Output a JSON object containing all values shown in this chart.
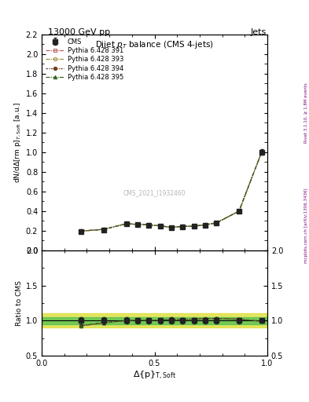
{
  "title_top": "13000 GeV pp",
  "title_right": "Jets",
  "plot_title": "Dijet $p_T$ balance (CMS 4-jets)",
  "watermark": "CMS_2021_I1932460",
  "right_label_top": "Rivet 3.1.10, ≥ 1.8M events",
  "right_label_bot": "mcplots.cern.ch [arXiv:1306.3436]",
  "ylabel_main": "dN/dΔ(rm p)$_{T,{\\rm Soft}}$ [a.u.]",
  "ylabel_ratio": "Ratio to CMS",
  "xlabel": "Δ{rm p}$_{T,Soft}$",
  "x_data": [
    0.175,
    0.275,
    0.375,
    0.425,
    0.475,
    0.525,
    0.575,
    0.625,
    0.675,
    0.725,
    0.775,
    0.875,
    0.975
  ],
  "cms_y": [
    0.19,
    0.21,
    0.27,
    0.262,
    0.258,
    0.248,
    0.232,
    0.242,
    0.244,
    0.258,
    0.278,
    0.398,
    1.0
  ],
  "cms_yerr": [
    0.01,
    0.01,
    0.012,
    0.01,
    0.01,
    0.01,
    0.01,
    0.01,
    0.01,
    0.01,
    0.012,
    0.015,
    0.03
  ],
  "p391_y": [
    0.196,
    0.213,
    0.27,
    0.263,
    0.259,
    0.249,
    0.233,
    0.243,
    0.245,
    0.259,
    0.279,
    0.399,
    1.001
  ],
  "p393_y": [
    0.196,
    0.214,
    0.271,
    0.263,
    0.259,
    0.249,
    0.233,
    0.243,
    0.245,
    0.259,
    0.279,
    0.399,
    1.001
  ],
  "p394_y": [
    0.196,
    0.214,
    0.271,
    0.264,
    0.26,
    0.249,
    0.234,
    0.244,
    0.246,
    0.26,
    0.28,
    0.4,
    1.001
  ],
  "p395_y": [
    0.196,
    0.214,
    0.271,
    0.264,
    0.26,
    0.249,
    0.234,
    0.244,
    0.246,
    0.26,
    0.28,
    0.4,
    1.001
  ],
  "ratio_391": [
    0.925,
    0.967,
    1.0,
    1.002,
    1.003,
    1.003,
    1.018,
    1.018,
    1.018,
    1.028,
    1.028,
    1.018,
    0.99
  ],
  "ratio_393": [
    0.927,
    0.969,
    1.002,
    1.003,
    1.004,
    1.004,
    1.019,
    1.019,
    1.019,
    1.029,
    1.029,
    1.019,
    0.991
  ],
  "ratio_394": [
    0.928,
    0.97,
    1.002,
    1.004,
    1.005,
    1.004,
    1.02,
    1.019,
    1.02,
    1.03,
    1.03,
    1.02,
    0.991
  ],
  "ratio_395": [
    0.928,
    0.97,
    1.002,
    1.004,
    1.005,
    1.004,
    1.02,
    1.019,
    1.02,
    1.03,
    1.03,
    1.02,
    0.991
  ],
  "color_cms": "#222222",
  "color_391": "#c06060",
  "color_393": "#a09040",
  "color_394": "#704020",
  "color_395": "#3a6020",
  "band_green": "#50c050",
  "band_yellow": "#d8d810",
  "ylim_main": [
    0.0,
    2.2
  ],
  "ylim_ratio": [
    0.5,
    2.0
  ],
  "xlim": [
    0.0,
    1.0
  ]
}
